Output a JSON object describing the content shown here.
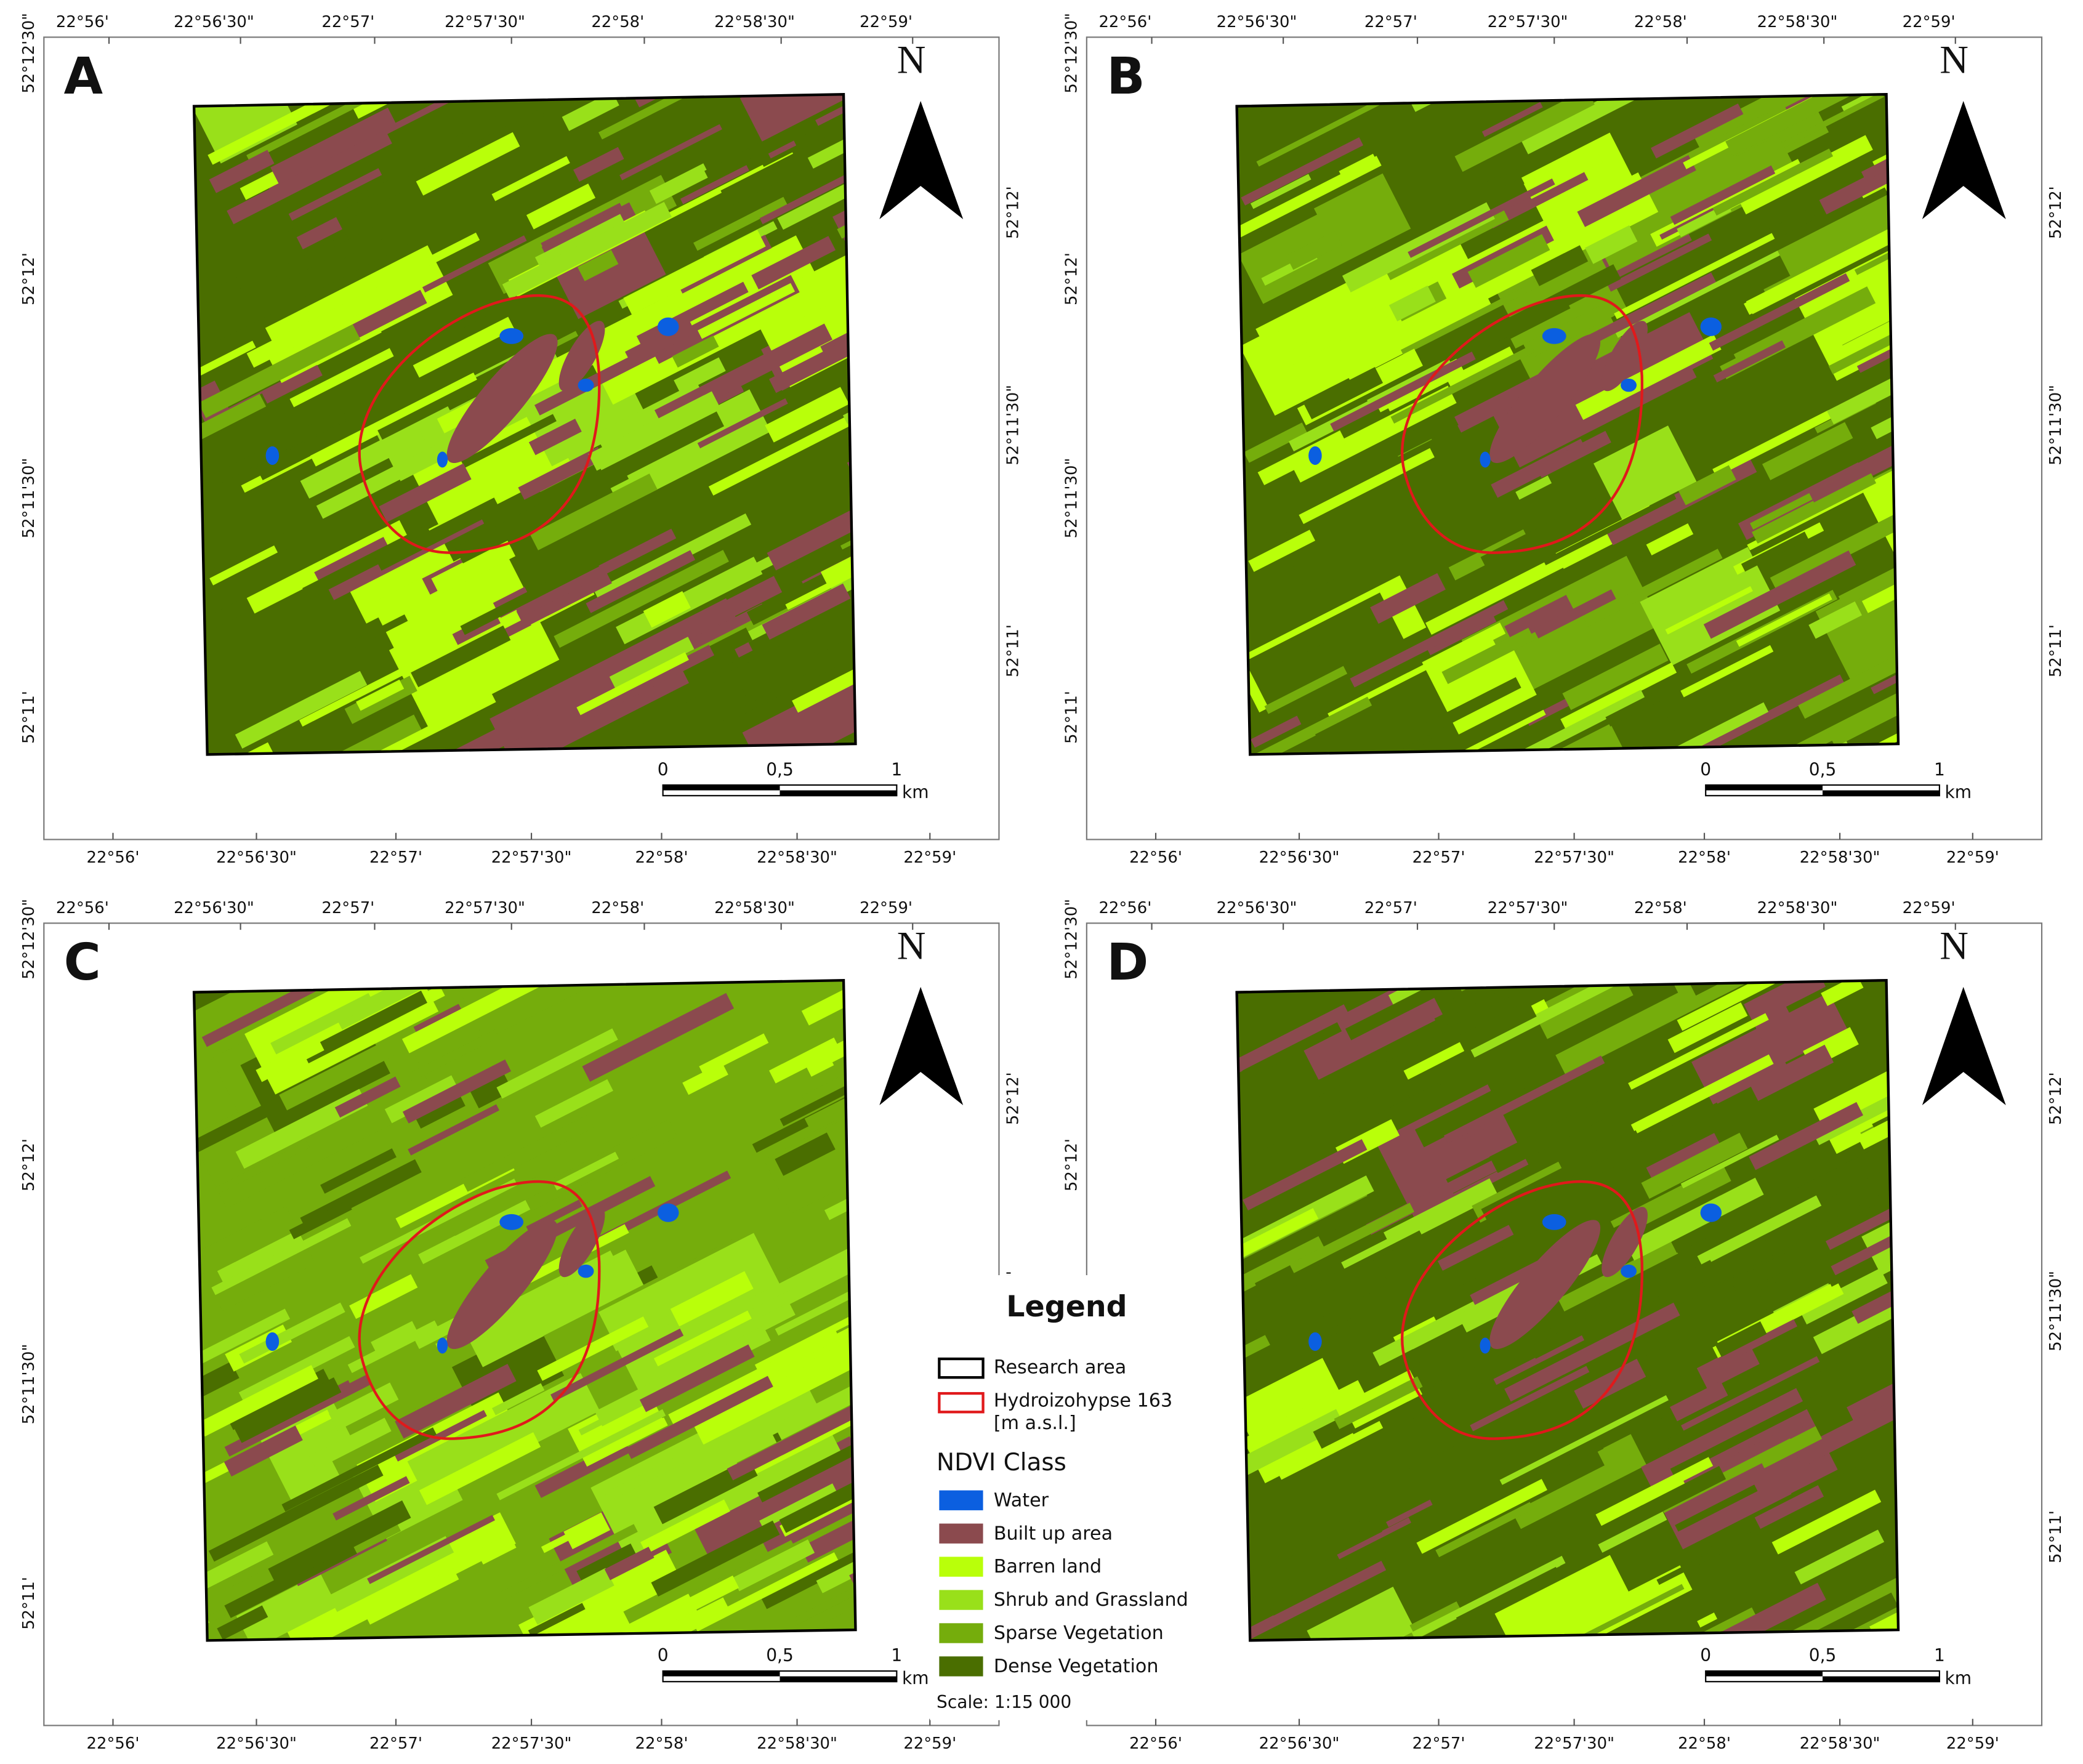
{
  "panels": [
    {
      "label": "A"
    },
    {
      "label": "B"
    },
    {
      "label": "C"
    },
    {
      "label": "D"
    }
  ],
  "grid_labels": {
    "longitude": [
      "22°56'",
      "22°56'30\"",
      "22°57'",
      "22°57'30\"",
      "22°58'",
      "22°58'30\"",
      "22°59'"
    ],
    "latitude_left": [
      "52°12'30\"",
      "52°12'",
      "52°11'30\"",
      "52°11'"
    ],
    "latitude_right": [
      "52°12'",
      "52°11'30\"",
      "52°11'"
    ]
  },
  "north": "N",
  "scale_bar": {
    "ticks": [
      "0",
      "0,5",
      "1"
    ],
    "unit": "km"
  },
  "legend": {
    "title": "Legend",
    "research_area": "Research area",
    "hydroizohypse": [
      "Hydroizohypse 163",
      "[m a.s.l.]"
    ],
    "ndvi_title": "NDVI Class",
    "classes": [
      {
        "name": "Water",
        "color": "#0b5fe0"
      },
      {
        "name": "Built up area",
        "color": "#8b4a4e"
      },
      {
        "name": "Barren land",
        "color": "#b9ff0a"
      },
      {
        "name": "Shrub and Grassland",
        "color": "#99e01a"
      },
      {
        "name": "Sparse Vegetation",
        "color": "#75ad0c"
      },
      {
        "name": "Dense Vegetation",
        "color": "#4a6e00"
      }
    ],
    "scale": "Scale: 1:15 000"
  }
}
